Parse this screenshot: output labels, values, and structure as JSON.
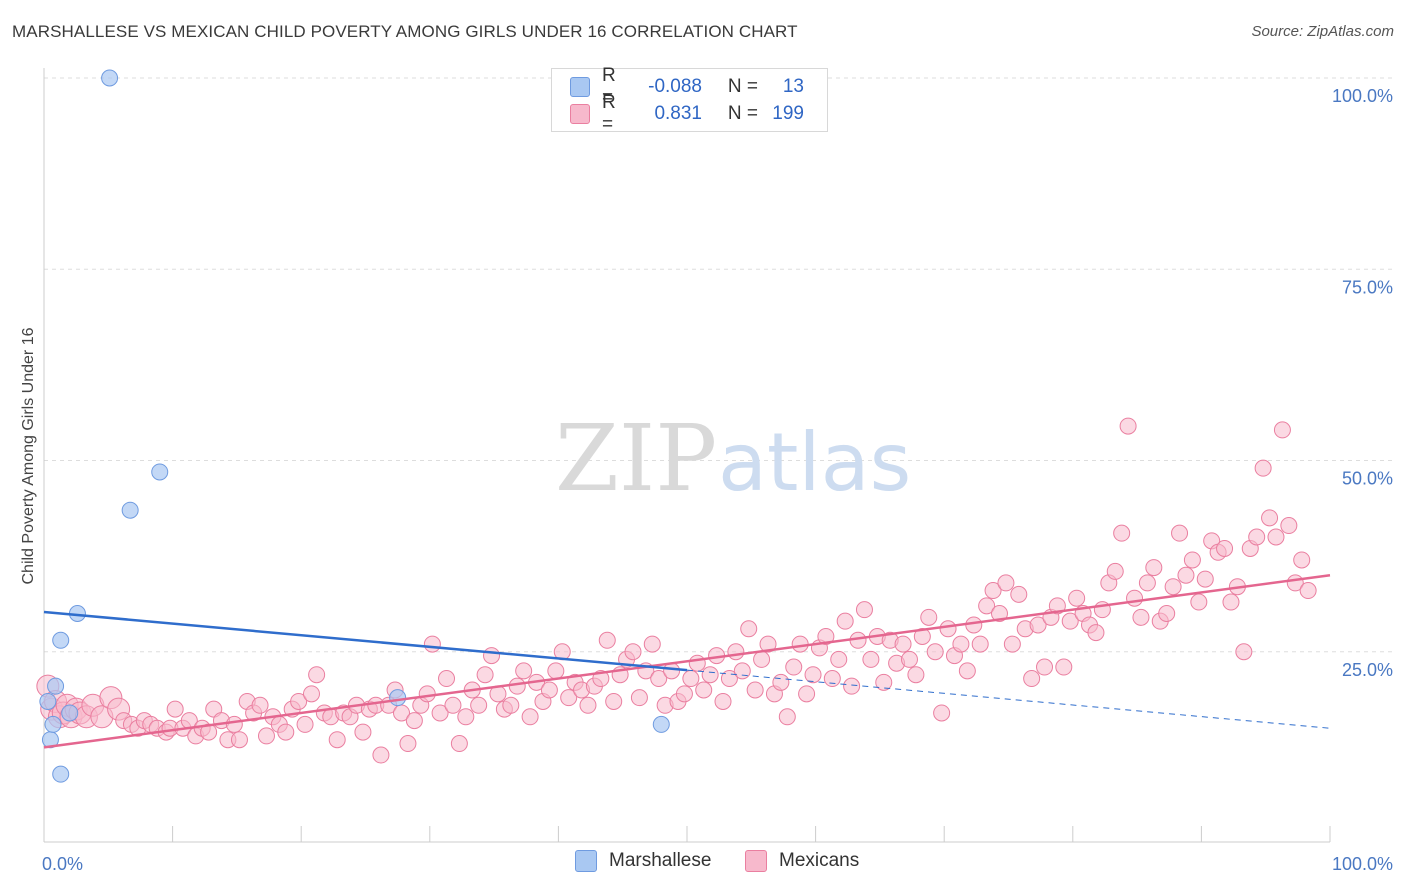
{
  "title": "MARSHALLESE VS MEXICAN CHILD POVERTY AMONG GIRLS UNDER 16 CORRELATION CHART",
  "source": "Source: ZipAtlas.com",
  "watermark": {
    "zip": "ZIP",
    "atlas": "atlas"
  },
  "legend": {
    "rows": [
      {
        "r_label": "R =",
        "r_value": "-0.088",
        "n_label": "N =",
        "n_value": "13",
        "color": "#a9c8f2",
        "border": "#6f9be0"
      },
      {
        "r_label": "R =",
        "r_value": "0.831",
        "n_label": "N =",
        "n_value": "199",
        "color": "#f7b9cc",
        "border": "#ea7fa0"
      }
    ]
  },
  "bottom_legend": [
    {
      "label": "Marshallese",
      "color": "#a9c8f2",
      "border": "#6f9be0"
    },
    {
      "label": "Mexicans",
      "color": "#f7b9cc",
      "border": "#ea7fa0"
    }
  ],
  "chart_data": {
    "type": "scatter",
    "title": "MARSHALLESE VS MEXICAN CHILD POVERTY AMONG GIRLS UNDER 16 CORRELATION CHART",
    "xlabel": "",
    "ylabel": "Child Poverty Among Girls Under 16",
    "xlim": [
      0,
      100
    ],
    "ylim": [
      0,
      100
    ],
    "x_tick_labels": [
      "0.0%",
      "100.0%"
    ],
    "y_ticks": [
      25,
      50,
      75,
      100
    ],
    "y_tick_labels": [
      "25.0%",
      "50.0%",
      "75.0%",
      "100.0%"
    ],
    "grid": true,
    "series": [
      {
        "name": "Marshallese",
        "color": "#a9c8f2",
        "stroke": "#6f9be0",
        "points": [
          [
            0.3,
            18.5
          ],
          [
            0.5,
            13.5
          ],
          [
            0.7,
            15.5
          ],
          [
            0.9,
            20.5
          ],
          [
            1.3,
            9.0
          ],
          [
            1.3,
            26.5
          ],
          [
            2.0,
            17.0
          ],
          [
            2.6,
            30.0
          ],
          [
            5.1,
            100.0
          ],
          [
            6.7,
            43.5
          ],
          [
            9.0,
            48.5
          ],
          [
            27.5,
            19.0
          ],
          [
            48.0,
            15.5
          ]
        ],
        "trend": {
          "x0": 0,
          "y0": 30.2,
          "x1": 100,
          "y1": 15.0,
          "solid_until": 50,
          "color": "#2f6dcc"
        }
      },
      {
        "name": "Mexicans",
        "color": "#f7b9cc",
        "stroke": "#ea7fa0",
        "points": [
          [
            0.3,
            20.5
          ],
          [
            0.6,
            17.5
          ],
          [
            0.9,
            18.5
          ],
          [
            1.2,
            16.5
          ],
          [
            1.5,
            17.0
          ],
          [
            1.8,
            18.0
          ],
          [
            2.1,
            16.5
          ],
          [
            2.5,
            17.5
          ],
          [
            2.8,
            17.0
          ],
          [
            3.3,
            16.5
          ],
          [
            3.8,
            18.0
          ],
          [
            4.5,
            16.5
          ],
          [
            5.2,
            19.0
          ],
          [
            5.8,
            17.5
          ],
          [
            6.2,
            16.0
          ],
          [
            6.8,
            15.5
          ],
          [
            7.3,
            15.0
          ],
          [
            7.8,
            16.0
          ],
          [
            8.3,
            15.5
          ],
          [
            8.8,
            15.0
          ],
          [
            9.5,
            14.5
          ],
          [
            9.8,
            15.0
          ],
          [
            10.2,
            17.5
          ],
          [
            10.8,
            15.0
          ],
          [
            11.3,
            16.0
          ],
          [
            11.8,
            14.0
          ],
          [
            12.3,
            15.0
          ],
          [
            12.8,
            14.5
          ],
          [
            13.2,
            17.5
          ],
          [
            13.8,
            16.0
          ],
          [
            14.3,
            13.5
          ],
          [
            14.8,
            15.5
          ],
          [
            15.2,
            13.5
          ],
          [
            15.8,
            18.5
          ],
          [
            16.3,
            17.0
          ],
          [
            16.8,
            18.0
          ],
          [
            17.3,
            14.0
          ],
          [
            17.8,
            16.5
          ],
          [
            18.3,
            15.5
          ],
          [
            18.8,
            14.5
          ],
          [
            19.3,
            17.5
          ],
          [
            19.8,
            18.5
          ],
          [
            20.3,
            15.5
          ],
          [
            20.8,
            19.5
          ],
          [
            21.2,
            22.0
          ],
          [
            21.8,
            17.0
          ],
          [
            22.3,
            16.5
          ],
          [
            22.8,
            13.5
          ],
          [
            23.3,
            17.0
          ],
          [
            23.8,
            16.5
          ],
          [
            24.3,
            18.0
          ],
          [
            24.8,
            14.5
          ],
          [
            25.3,
            17.5
          ],
          [
            25.8,
            18.0
          ],
          [
            26.2,
            11.5
          ],
          [
            26.8,
            18.0
          ],
          [
            27.3,
            20.0
          ],
          [
            27.8,
            17.0
          ],
          [
            28.3,
            13.0
          ],
          [
            28.8,
            16.0
          ],
          [
            29.3,
            18.0
          ],
          [
            29.8,
            19.5
          ],
          [
            30.2,
            26.0
          ],
          [
            30.8,
            17.0
          ],
          [
            31.3,
            21.5
          ],
          [
            31.8,
            18.0
          ],
          [
            32.3,
            13.0
          ],
          [
            32.8,
            16.5
          ],
          [
            33.3,
            20.0
          ],
          [
            33.8,
            18.0
          ],
          [
            34.3,
            22.0
          ],
          [
            34.8,
            24.5
          ],
          [
            35.3,
            19.5
          ],
          [
            35.8,
            17.5
          ],
          [
            36.3,
            18.0
          ],
          [
            36.8,
            20.5
          ],
          [
            37.3,
            22.5
          ],
          [
            37.8,
            16.5
          ],
          [
            38.3,
            21.0
          ],
          [
            38.8,
            18.5
          ],
          [
            39.3,
            20.0
          ],
          [
            39.8,
            22.5
          ],
          [
            40.3,
            25.0
          ],
          [
            40.8,
            19.0
          ],
          [
            41.3,
            21.0
          ],
          [
            41.8,
            20.0
          ],
          [
            42.3,
            18.0
          ],
          [
            42.8,
            20.5
          ],
          [
            43.3,
            21.5
          ],
          [
            43.8,
            26.5
          ],
          [
            44.3,
            18.5
          ],
          [
            44.8,
            22.0
          ],
          [
            45.3,
            24.0
          ],
          [
            45.8,
            25.0
          ],
          [
            46.3,
            19.0
          ],
          [
            46.8,
            22.5
          ],
          [
            47.3,
            26.0
          ],
          [
            47.8,
            21.5
          ],
          [
            48.3,
            18.0
          ],
          [
            48.8,
            22.5
          ],
          [
            49.3,
            18.5
          ],
          [
            49.8,
            19.5
          ],
          [
            50.3,
            21.5
          ],
          [
            50.8,
            23.5
          ],
          [
            51.3,
            20.0
          ],
          [
            51.8,
            22.0
          ],
          [
            52.3,
            24.5
          ],
          [
            52.8,
            18.5
          ],
          [
            53.3,
            21.5
          ],
          [
            53.8,
            25.0
          ],
          [
            54.3,
            22.5
          ],
          [
            54.8,
            28.0
          ],
          [
            55.3,
            20.0
          ],
          [
            55.8,
            24.0
          ],
          [
            56.3,
            26.0
          ],
          [
            56.8,
            19.5
          ],
          [
            57.3,
            21.0
          ],
          [
            57.8,
            16.5
          ],
          [
            58.3,
            23.0
          ],
          [
            58.8,
            26.0
          ],
          [
            59.3,
            19.5
          ],
          [
            59.8,
            22.0
          ],
          [
            60.3,
            25.5
          ],
          [
            60.8,
            27.0
          ],
          [
            61.3,
            21.5
          ],
          [
            61.8,
            24.0
          ],
          [
            62.3,
            29.0
          ],
          [
            62.8,
            20.5
          ],
          [
            63.3,
            26.5
          ],
          [
            63.8,
            30.5
          ],
          [
            64.3,
            24.0
          ],
          [
            64.8,
            27.0
          ],
          [
            65.3,
            21.0
          ],
          [
            65.8,
            26.5
          ],
          [
            66.3,
            23.5
          ],
          [
            66.8,
            26.0
          ],
          [
            67.3,
            24.0
          ],
          [
            67.8,
            22.0
          ],
          [
            68.3,
            27.0
          ],
          [
            68.8,
            29.5
          ],
          [
            69.3,
            25.0
          ],
          [
            69.8,
            17.0
          ],
          [
            70.3,
            28.0
          ],
          [
            70.8,
            24.5
          ],
          [
            71.3,
            26.0
          ],
          [
            71.8,
            22.5
          ],
          [
            72.3,
            28.5
          ],
          [
            72.8,
            26.0
          ],
          [
            73.3,
            31.0
          ],
          [
            73.8,
            33.0
          ],
          [
            74.3,
            30.0
          ],
          [
            74.8,
            34.0
          ],
          [
            75.3,
            26.0
          ],
          [
            75.8,
            32.5
          ],
          [
            76.3,
            28.0
          ],
          [
            76.8,
            21.5
          ],
          [
            77.3,
            28.5
          ],
          [
            77.8,
            23.0
          ],
          [
            78.3,
            29.5
          ],
          [
            78.8,
            31.0
          ],
          [
            79.3,
            23.0
          ],
          [
            79.8,
            29.0
          ],
          [
            80.3,
            32.0
          ],
          [
            80.8,
            30.0
          ],
          [
            81.3,
            28.5
          ],
          [
            81.8,
            27.5
          ],
          [
            82.3,
            30.5
          ],
          [
            82.8,
            34.0
          ],
          [
            83.3,
            35.5
          ],
          [
            83.8,
            40.5
          ],
          [
            84.3,
            54.5
          ],
          [
            84.8,
            32.0
          ],
          [
            85.3,
            29.5
          ],
          [
            85.8,
            34.0
          ],
          [
            86.3,
            36.0
          ],
          [
            86.8,
            29.0
          ],
          [
            87.3,
            30.0
          ],
          [
            87.8,
            33.5
          ],
          [
            88.3,
            40.5
          ],
          [
            88.8,
            35.0
          ],
          [
            89.3,
            37.0
          ],
          [
            89.8,
            31.5
          ],
          [
            90.3,
            34.5
          ],
          [
            90.8,
            39.5
          ],
          [
            91.3,
            38.0
          ],
          [
            91.8,
            38.5
          ],
          [
            92.3,
            31.5
          ],
          [
            92.8,
            33.5
          ],
          [
            93.3,
            25.0
          ],
          [
            93.8,
            38.5
          ],
          [
            94.3,
            40.0
          ],
          [
            94.8,
            49.0
          ],
          [
            95.3,
            42.5
          ],
          [
            95.8,
            40.0
          ],
          [
            96.3,
            54.0
          ],
          [
            96.8,
            41.5
          ],
          [
            97.3,
            34.0
          ],
          [
            97.8,
            37.0
          ],
          [
            98.3,
            33.0
          ]
        ],
        "trend": {
          "x0": 0,
          "y0": 12.5,
          "x1": 100,
          "y1": 35.0,
          "color": "#e4668f"
        }
      }
    ]
  }
}
